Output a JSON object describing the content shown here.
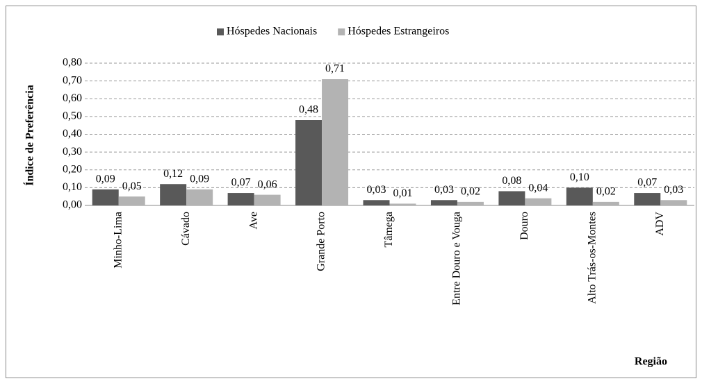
{
  "chart_data": {
    "type": "bar",
    "x_label": "Região",
    "y_label": "Índice de Preferência",
    "categories": [
      "Minho-Lima",
      "Cávado",
      "Ave",
      "Grande Porto",
      "Tâmega",
      "Entre Douro e Vouga",
      "Douro",
      "Alto Trás-os-Montes",
      "ADV"
    ],
    "series": [
      {
        "name": "Hóspedes Nacionais",
        "color": "#595959",
        "values": [
          0.09,
          0.12,
          0.07,
          0.48,
          0.03,
          0.03,
          0.08,
          0.1,
          0.07
        ],
        "value_labels": [
          "0,09",
          "0,12",
          "0,07",
          "0,48",
          "0,03",
          "0,03",
          "0,08",
          "0,10",
          "0,07"
        ]
      },
      {
        "name": "Hóspedes Estrangeiros",
        "color": "#b3b3b3",
        "values": [
          0.05,
          0.09,
          0.06,
          0.71,
          0.01,
          0.02,
          0.04,
          0.02,
          0.03
        ],
        "value_labels": [
          "0,05",
          "0,09",
          "0,06",
          "0,71",
          "0,01",
          "0,02",
          "0,04",
          "0,02",
          "0,03"
        ]
      }
    ],
    "ylim": [
      0,
      0.8
    ],
    "yticks": [
      {
        "value": 0,
        "label": "0,00"
      },
      {
        "value": 0.1,
        "label": "0,10"
      },
      {
        "value": 0.2,
        "label": "0,20"
      },
      {
        "value": 0.3,
        "label": "0,30"
      },
      {
        "value": 0.4,
        "label": "0,40"
      },
      {
        "value": 0.5,
        "label": "0,50"
      },
      {
        "value": 0.6,
        "label": "0,60"
      },
      {
        "value": 0.7,
        "label": "0,70"
      },
      {
        "value": 0.8,
        "label": "0,80"
      }
    ],
    "grid": true,
    "legend": "top"
  }
}
